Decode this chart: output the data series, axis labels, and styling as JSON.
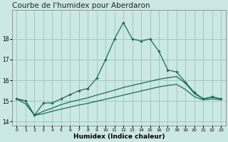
{
  "title": "Courbe de l'humidex pour Aberdaron",
  "xlabel": "Humidex (Indice chaleur)",
  "background_color": "#cce8e4",
  "grid_color": "#99ccc4",
  "line_color": "#1a6b5a",
  "x": [
    0,
    1,
    2,
    3,
    4,
    5,
    6,
    7,
    8,
    9,
    10,
    11,
    12,
    13,
    14,
    15,
    16,
    17,
    18,
    19,
    20,
    21,
    22,
    23
  ],
  "line1": [
    15.1,
    15.0,
    14.3,
    14.9,
    14.9,
    15.1,
    15.3,
    15.5,
    15.6,
    16.1,
    17.0,
    18.0,
    18.8,
    18.0,
    17.9,
    18.0,
    17.4,
    16.5,
    16.4,
    15.9,
    15.4,
    15.1,
    15.2,
    15.1
  ],
  "line2": [
    15.1,
    15.0,
    14.3,
    14.5,
    14.65,
    14.82,
    14.95,
    15.05,
    15.15,
    15.28,
    15.4,
    15.52,
    15.65,
    15.75,
    15.85,
    15.95,
    16.05,
    16.12,
    16.18,
    15.85,
    15.35,
    15.1,
    15.18,
    15.1
  ],
  "line3": [
    15.1,
    14.85,
    14.3,
    14.38,
    14.5,
    14.6,
    14.7,
    14.8,
    14.88,
    14.98,
    15.08,
    15.18,
    15.28,
    15.38,
    15.48,
    15.58,
    15.68,
    15.75,
    15.8,
    15.55,
    15.2,
    15.05,
    15.1,
    15.05
  ],
  "ylim": [
    13.8,
    19.4
  ],
  "yticks": [
    14,
    15,
    16,
    17,
    18
  ],
  "xticks": [
    0,
    1,
    2,
    3,
    4,
    5,
    6,
    7,
    8,
    9,
    10,
    11,
    12,
    13,
    14,
    15,
    16,
    17,
    18,
    19,
    20,
    21,
    22,
    23
  ],
  "title_fontsize": 7.5,
  "label_fontsize": 6.5,
  "tick_fontsize": 5.5
}
